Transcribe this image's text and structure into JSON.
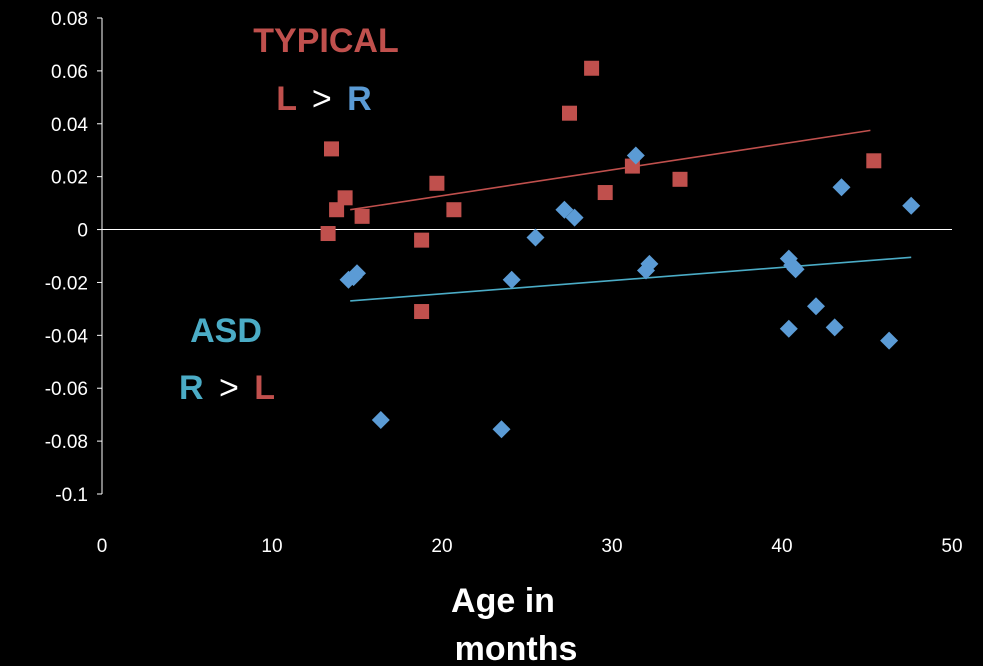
{
  "colors": {
    "background": "#000000",
    "typical": "#c0504d",
    "asd": "#4bacc6",
    "r_label": "#5b9bd5",
    "asd_marker": "#5b9bd5",
    "axis": "#ffffff"
  },
  "annotations": {
    "typical_title": "TYPICAL",
    "typical_left": "L",
    "typical_op": ">",
    "typical_right": "R",
    "asd_title": "ASD",
    "asd_left": "R",
    "asd_op": ">",
    "asd_right": "L"
  },
  "chart_data": {
    "type": "scatter",
    "title": "",
    "xlabel_line1": "Age in",
    "xlabel_line2": "months",
    "ylabel": "",
    "xlim": [
      0,
      50
    ],
    "ylim": [
      -0.1,
      0.08
    ],
    "xticks": [
      "0",
      "10",
      "20",
      "30",
      "40",
      "50"
    ],
    "yticks": [
      "0.08",
      "0.06",
      "0.04",
      "0.02",
      "0",
      "-0.02",
      "-0.04",
      "-0.06",
      "-0.08",
      "-0.1"
    ],
    "grid": false,
    "legend": "none",
    "series": [
      {
        "key": "typical",
        "marker": "square",
        "points": [
          [
            13.3,
            -0.0015
          ],
          [
            13.5,
            0.0305
          ],
          [
            13.8,
            0.0075
          ],
          [
            14.3,
            0.012
          ],
          [
            15.3,
            0.005
          ],
          [
            18.8,
            -0.004
          ],
          [
            18.8,
            -0.031
          ],
          [
            19.7,
            0.0175
          ],
          [
            20.7,
            0.0075
          ],
          [
            27.5,
            0.044
          ],
          [
            28.8,
            0.061
          ],
          [
            29.6,
            0.014
          ],
          [
            31.2,
            0.024
          ],
          [
            34.0,
            0.019
          ],
          [
            45.4,
            0.026
          ]
        ],
        "trend": [
          [
            14.6,
            0.0075
          ],
          [
            45.2,
            0.0375
          ]
        ]
      },
      {
        "key": "asd",
        "marker": "diamond",
        "points": [
          [
            14.5,
            -0.019
          ],
          [
            14.8,
            -0.018
          ],
          [
            15.0,
            -0.0165
          ],
          [
            16.4,
            -0.072
          ],
          [
            23.5,
            -0.0755
          ],
          [
            24.1,
            -0.019
          ],
          [
            25.5,
            -0.003
          ],
          [
            27.2,
            0.0075
          ],
          [
            27.8,
            0.0045
          ],
          [
            31.4,
            0.028
          ],
          [
            32.0,
            -0.0155
          ],
          [
            32.2,
            -0.013
          ],
          [
            40.4,
            -0.011
          ],
          [
            40.6,
            -0.0135
          ],
          [
            40.8,
            -0.015
          ],
          [
            40.4,
            -0.0375
          ],
          [
            42.0,
            -0.029
          ],
          [
            43.1,
            -0.037
          ],
          [
            43.5,
            0.016
          ],
          [
            46.3,
            -0.042
          ],
          [
            47.6,
            0.009
          ]
        ],
        "trend": [
          [
            14.6,
            -0.027
          ],
          [
            47.6,
            -0.0105
          ]
        ]
      }
    ]
  }
}
